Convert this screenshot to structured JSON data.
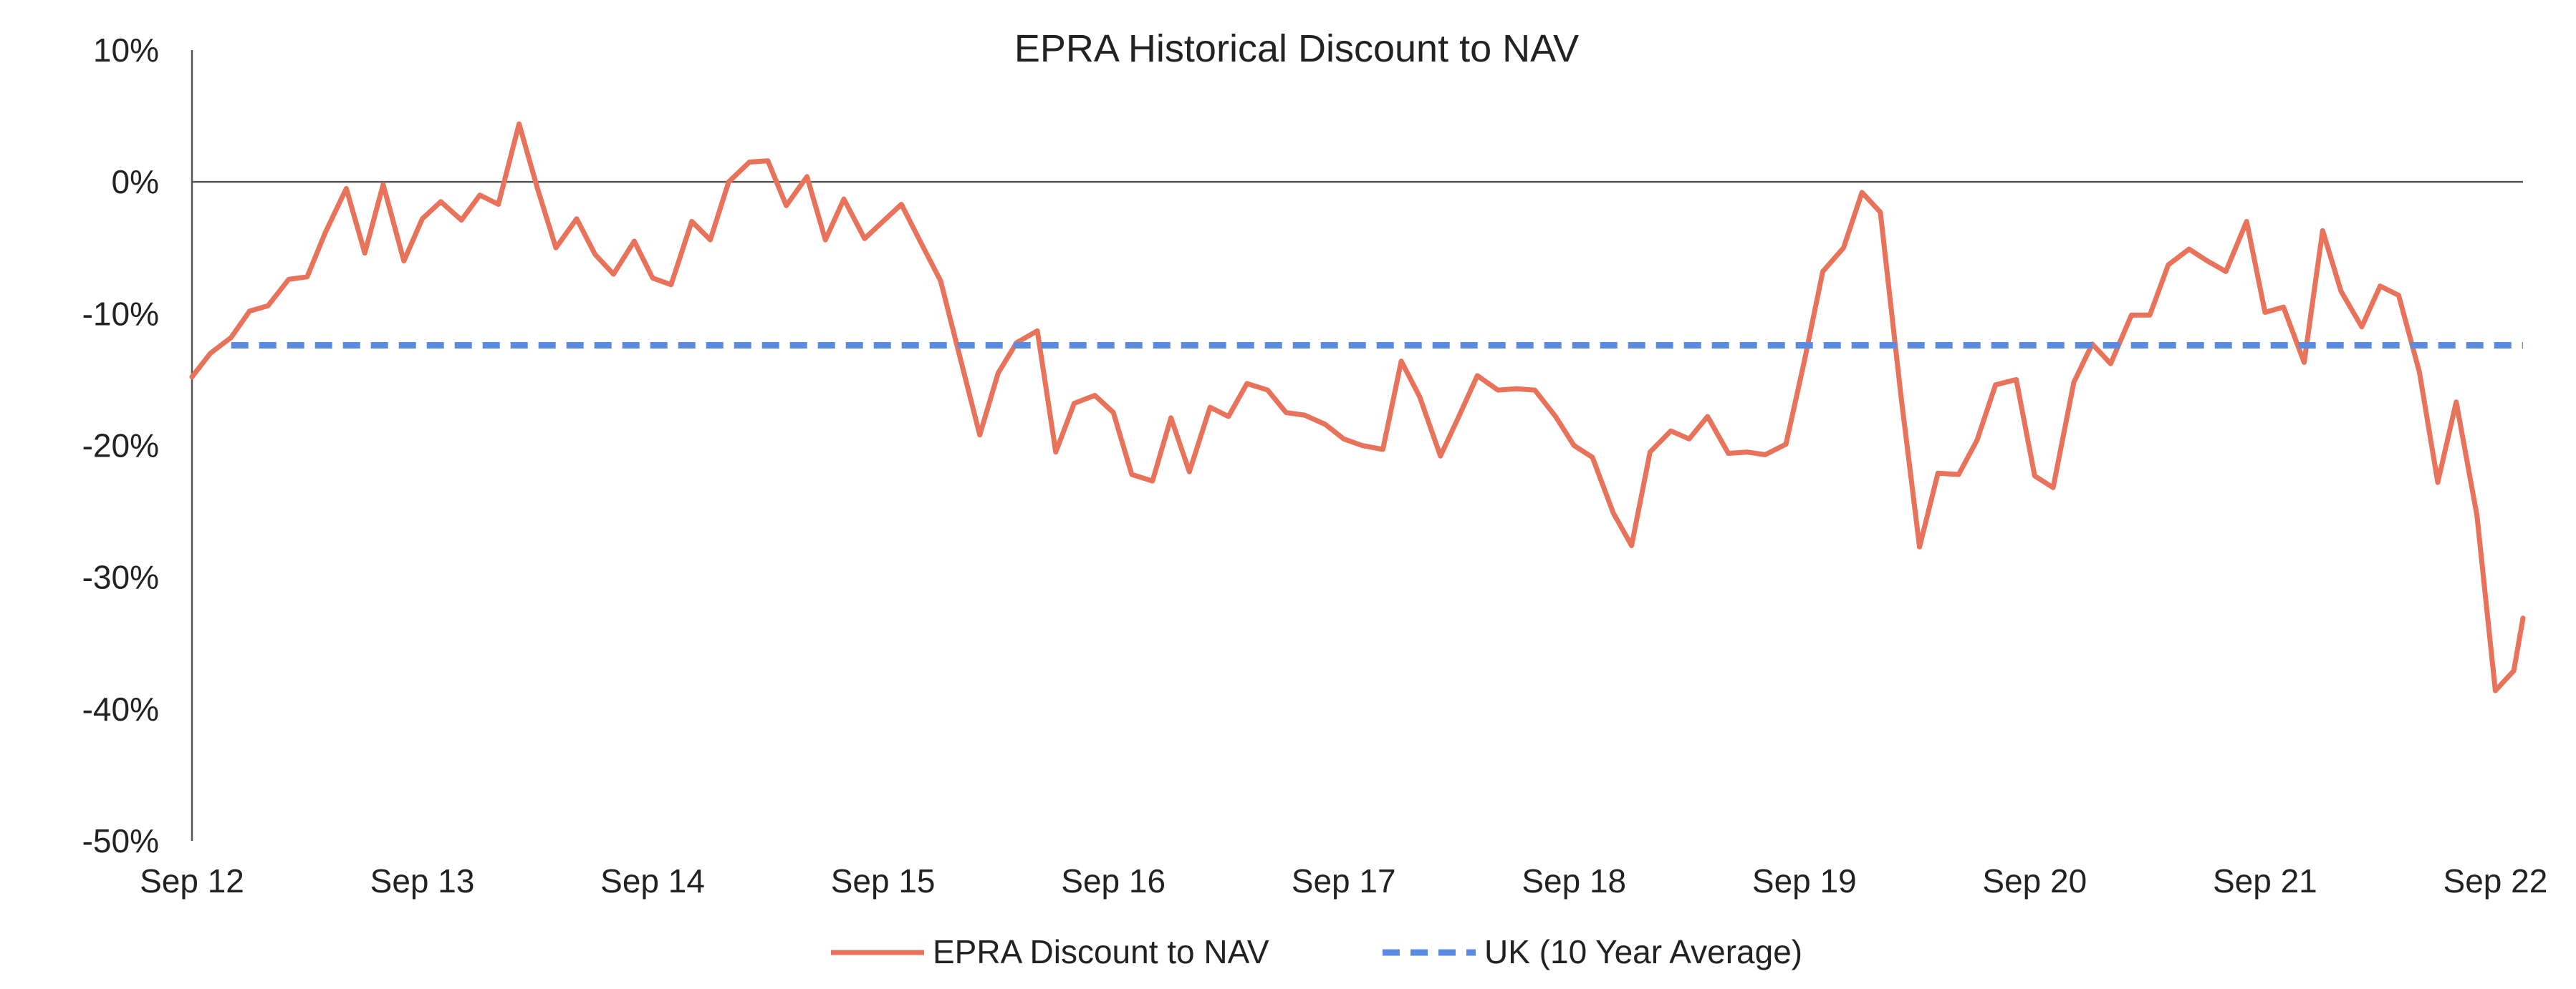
{
  "colors": {
    "epra_line": "#E8735A",
    "average_line": "#5B8BE0",
    "axis": "#555555",
    "text": "#222222"
  },
  "chart_data": {
    "type": "line",
    "title": "EPRA Historical Discount to NAV",
    "xlabel": "",
    "ylabel": "",
    "ylim": [
      -50,
      10
    ],
    "yticks": [
      10,
      0,
      -10,
      -20,
      -30,
      -40,
      -50
    ],
    "ytick_labels": [
      "10%",
      "0%",
      "-10%",
      "-20%",
      "-30%",
      "-40%",
      "-50%"
    ],
    "xlim": [
      2012.75,
      2022.87
    ],
    "xtick_labels": [
      "Sep 12",
      "Sep 13",
      "Sep 14",
      "Sep 15",
      "Sep 16",
      "Sep 17",
      "Sep 18",
      "Sep 19",
      "Sep 20",
      "Sep 21",
      "Sep 22"
    ],
    "grid": false,
    "legend_position": "bottom",
    "series": [
      {
        "name": "EPRA Discount to NAV",
        "style": "solid",
        "x": [
          2012.75,
          2012.83,
          2012.92,
          2013.0,
          2013.08,
          2013.17,
          2013.25,
          2013.33,
          2013.42,
          2013.5,
          2013.58,
          2013.67,
          2013.75,
          2013.83,
          2013.92,
          2014.0,
          2014.08,
          2014.17,
          2014.25,
          2014.33,
          2014.42,
          2014.5,
          2014.58,
          2014.67,
          2014.75,
          2014.83,
          2014.92,
          2015.0,
          2015.08,
          2015.17,
          2015.25,
          2015.33,
          2015.42,
          2015.5,
          2015.58,
          2015.67,
          2015.75,
          2015.83,
          2015.92,
          2016.0,
          2016.08,
          2016.17,
          2016.25,
          2016.33,
          2016.42,
          2016.5,
          2016.58,
          2016.67,
          2016.75,
          2016.83,
          2016.92,
          2017.0,
          2017.08,
          2017.17,
          2017.25,
          2017.33,
          2017.42,
          2017.5,
          2017.58,
          2017.67,
          2017.75,
          2017.83,
          2017.92,
          2018.0,
          2018.08,
          2018.17,
          2018.25,
          2018.33,
          2018.42,
          2018.5,
          2018.58,
          2018.67,
          2018.75,
          2018.83,
          2018.92,
          2019.0,
          2019.08,
          2019.17,
          2019.25,
          2019.33,
          2019.42,
          2019.5,
          2019.58,
          2019.67,
          2019.75,
          2019.83,
          2019.92,
          2020.0,
          2020.08,
          2020.17,
          2020.25,
          2020.33,
          2020.42,
          2020.5,
          2020.58,
          2020.67,
          2020.75,
          2020.83,
          2020.92,
          2021.0,
          2021.08,
          2021.17,
          2021.25,
          2021.33,
          2021.42,
          2021.5,
          2021.58,
          2021.67,
          2021.75,
          2021.83,
          2021.92,
          2022.0,
          2022.08,
          2022.17,
          2022.25,
          2022.33,
          2022.42,
          2022.5,
          2022.58,
          2022.67,
          2022.75,
          2022.83,
          2022.87
        ],
        "values": [
          -14.8,
          -13.0,
          -11.8,
          -9.8,
          -9.4,
          -7.4,
          -7.2,
          -3.8,
          -0.5,
          -5.4,
          -0.2,
          -6.0,
          -2.8,
          -1.5,
          -2.9,
          -1.0,
          -1.7,
          4.4,
          -0.5,
          -5.0,
          -2.8,
          -5.5,
          -7.0,
          -4.5,
          -7.3,
          -7.8,
          -3.0,
          -4.4,
          0.0,
          1.5,
          1.6,
          -1.8,
          0.4,
          -4.4,
          -1.3,
          -4.3,
          -3.0,
          -1.7,
          -4.8,
          -7.5,
          -13.0,
          -19.2,
          -14.5,
          -12.2,
          -11.3,
          -20.5,
          -16.8,
          -16.2,
          -17.5,
          -22.2,
          -22.7,
          -17.9,
          -22.0,
          -17.1,
          -17.8,
          -15.3,
          -15.8,
          -17.5,
          -17.7,
          -18.4,
          -19.5,
          -20.0,
          -20.3,
          -13.6,
          -16.3,
          -20.8,
          -17.8,
          -14.7,
          -15.8,
          -15.7,
          -15.8,
          -17.8,
          -20.0,
          -20.9,
          -25.1,
          -27.6,
          -20.5,
          -18.9,
          -19.5,
          -17.8,
          -20.6,
          -20.5,
          -20.7,
          -19.9,
          -13.6,
          -6.8,
          -5.0,
          -0.8,
          -2.3,
          -16.3,
          -27.7,
          -22.1,
          -22.2,
          -19.6,
          -15.4,
          -15.0,
          -22.3,
          -23.2,
          -15.2,
          -12.3,
          -13.8,
          -10.1,
          -10.1,
          -6.3,
          -5.1,
          -6.0,
          -6.8,
          -3.0,
          -9.9,
          -9.5,
          -13.7,
          -3.7,
          -8.3,
          -11.0,
          -7.9,
          -8.6,
          -14.4,
          -22.8,
          -16.7,
          -25.3,
          -38.6,
          -37.1,
          -33.1
        ]
      },
      {
        "name": "UK (10 Year Average)",
        "style": "dashed",
        "x": [
          2012.92,
          2022.87
        ],
        "values": [
          -12.4,
          -12.4
        ]
      }
    ]
  }
}
